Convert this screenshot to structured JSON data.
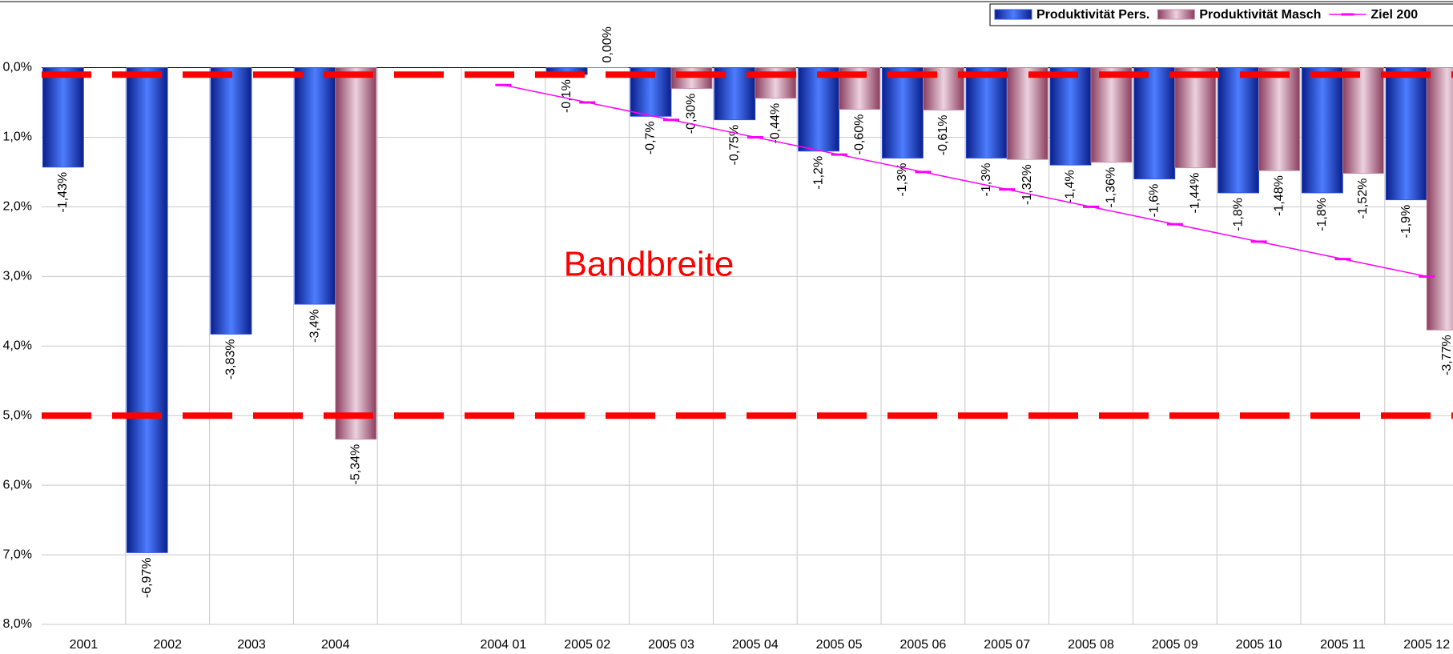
{
  "chart_data": {
    "type": "bar",
    "annotation": "Bandbreite",
    "categories": [
      "2001",
      "2002",
      "2003",
      "2004",
      null,
      "2004 01",
      "2005 02",
      "2005 03",
      "2005 04",
      "2005 05",
      "2005 06",
      "2005 07",
      "2005 08",
      "2005 09",
      "2005 10",
      "2005 11",
      "2005 12"
    ],
    "series": [
      {
        "name": "Produktivität Pers.",
        "color": "#2f55e8",
        "type": "bar",
        "values": [
          -1.43,
          -6.97,
          -3.83,
          -3.4,
          null,
          null,
          -0.1,
          -0.7,
          -0.75,
          -1.2,
          -1.3,
          -1.3,
          -1.4,
          -1.6,
          -1.8,
          -1.8,
          -1.9
        ],
        "value_labels": [
          "-1,43%",
          "-6,97%",
          "-3,83%",
          "-3,4%",
          null,
          null,
          "-0,1%",
          "-0,7%",
          "-0,75%",
          "-1,2%",
          "-1,3%",
          "-1,3%",
          "-1,4%",
          "-1,6%",
          "-1,8%",
          "-1,8%",
          "-1,9%"
        ]
      },
      {
        "name": "Produktivität Masch",
        "color": "#c98fa8",
        "type": "bar",
        "values": [
          null,
          null,
          null,
          -5.34,
          null,
          null,
          0,
          -0.3,
          -0.44,
          -0.6,
          -0.61,
          -1.32,
          -1.36,
          -1.44,
          -1.48,
          -1.52,
          -3.77
        ],
        "value_labels": [
          null,
          null,
          null,
          "-5,34%",
          null,
          null,
          "0,00%",
          "-0,30%",
          "-0,44%",
          "-0,60%",
          "-0,61%",
          "-1,32%",
          "-1,36%",
          "-1,44%",
          "-1,48%",
          "-1,52%",
          "-3,77%"
        ]
      },
      {
        "name": "Ziel 200",
        "color": "#ff00ff",
        "type": "line",
        "values": [
          null,
          null,
          null,
          null,
          null,
          -0.25,
          -0.5,
          -0.75,
          -1.0,
          -1.25,
          -1.5,
          -1.75,
          -2.0,
          -2.25,
          -2.5,
          -2.75,
          -3.0
        ]
      }
    ],
    "band": [
      -0.1,
      -5
    ],
    "band_color": "#ff0000",
    "ylim": [
      -8,
      0
    ],
    "yticks": [
      {
        "value": 0,
        "label": "0,0%"
      },
      {
        "value": -1,
        "label": "1,0%"
      },
      {
        "value": -2,
        "label": "2,0%"
      },
      {
        "value": -3,
        "label": "3,0%"
      },
      {
        "value": -4,
        "label": "4,0%"
      },
      {
        "value": -5,
        "label": "5,0%"
      },
      {
        "value": -6,
        "label": "6,0%"
      },
      {
        "value": -7,
        "label": "7,0%"
      },
      {
        "value": -8,
        "label": "8,0%"
      }
    ],
    "grid": true
  }
}
